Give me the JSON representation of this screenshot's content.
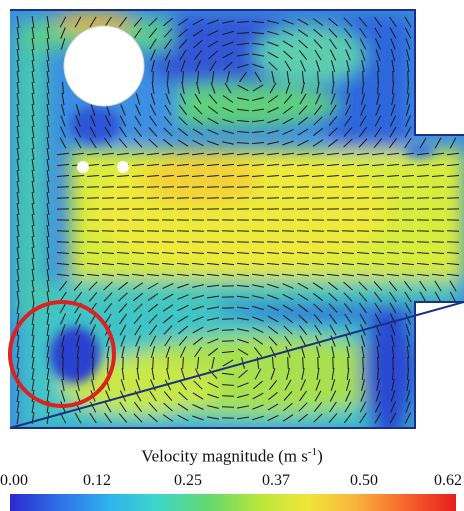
{
  "colorbar": {
    "title_main": "Velocity magnitude (m s",
    "title_exp": "-1",
    "title_close": ")",
    "ticks": [
      "0.00",
      "0.12",
      "0.25",
      "0.37",
      "0.50",
      "0.62"
    ],
    "range": [
      0,
      0.62
    ],
    "colors": [
      "#2a2ad0",
      "#2f6fe8",
      "#2fb3ef",
      "#3fd6c8",
      "#62d86f",
      "#b7e63c",
      "#f0e63a",
      "#f9b23c",
      "#f7632c",
      "#e61f1f"
    ]
  },
  "domain_colors": {
    "wall": "#1a2d8c",
    "low": "#3154d8",
    "mid": "#35b5e6",
    "jet": "#e6f03c",
    "highlight": "#dd2020"
  }
}
